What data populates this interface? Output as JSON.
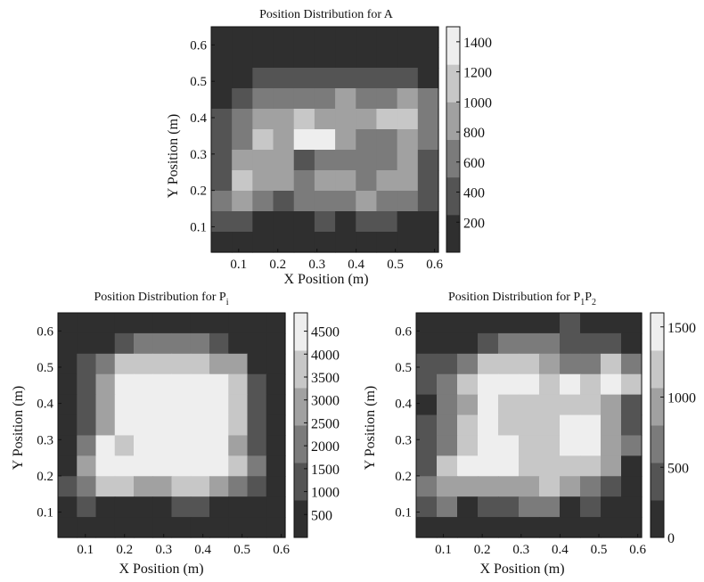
{
  "colors": {
    "levels": [
      "#2f2f2f",
      "#545454",
      "#7b7b7b",
      "#a1a1a1",
      "#c7c7c7",
      "#eeeeee"
    ],
    "frame": "#111111",
    "background": "#ffffff"
  },
  "chart_data": [
    {
      "type": "heatmap",
      "title": "Position Distribution for A",
      "xlabel": "X Position (m)",
      "ylabel": "Y Position (m)",
      "xticks": [
        "0.1",
        "0.2",
        "0.3",
        "0.4",
        "0.5",
        "0.6"
      ],
      "yticks": [
        "0.1",
        "0.2",
        "0.3",
        "0.4",
        "0.5",
        "0.6"
      ],
      "xlim": [
        0.03,
        0.61
      ],
      "ylim": [
        0.03,
        0.65
      ],
      "grid": false,
      "colorbar": {
        "ticks": [
          "200",
          "400",
          "600",
          "800",
          "1000",
          "1200",
          "1400"
        ],
        "tick_values": [
          200,
          400,
          600,
          800,
          1000,
          1200,
          1400
        ],
        "range": [
          0,
          1500
        ],
        "levels": 6
      },
      "cell_levels": [
        [
          0,
          0,
          0,
          0,
          0,
          0,
          0,
          0,
          0,
          0,
          0
        ],
        [
          0,
          0,
          0,
          0,
          0,
          0,
          0,
          0,
          0,
          0,
          0
        ],
        [
          0,
          0,
          1,
          1,
          1,
          1,
          1,
          1,
          1,
          1,
          0
        ],
        [
          0,
          1,
          2,
          2,
          2,
          2,
          3,
          2,
          2,
          3,
          2
        ],
        [
          1,
          2,
          3,
          3,
          4,
          3,
          3,
          3,
          4,
          4,
          2
        ],
        [
          1,
          2,
          4,
          3,
          5,
          5,
          3,
          2,
          2,
          3,
          2
        ],
        [
          1,
          3,
          3,
          3,
          1,
          2,
          2,
          2,
          2,
          3,
          1
        ],
        [
          1,
          4,
          3,
          3,
          2,
          3,
          3,
          2,
          3,
          3,
          1
        ],
        [
          2,
          3,
          2,
          1,
          2,
          2,
          2,
          3,
          2,
          2,
          1
        ],
        [
          1,
          1,
          0,
          0,
          0,
          1,
          0,
          1,
          1,
          0,
          0
        ],
        [
          0,
          0,
          0,
          0,
          0,
          0,
          0,
          0,
          0,
          0,
          0
        ]
      ]
    },
    {
      "type": "heatmap",
      "title": "Position Distribution for P",
      "title_subscript": "i",
      "xlabel": "X Position (m)",
      "ylabel": "Y Position (m)",
      "xticks": [
        "0.1",
        "0.2",
        "0.3",
        "0.4",
        "0.5",
        "0.6"
      ],
      "yticks": [
        "0.1",
        "0.2",
        "0.3",
        "0.4",
        "0.5",
        "0.6"
      ],
      "xlim": [
        0.03,
        0.61
      ],
      "ylim": [
        0.03,
        0.65
      ],
      "grid": false,
      "colorbar": {
        "ticks": [
          "500",
          "1000",
          "1500",
          "2000",
          "2500",
          "3000",
          "3500",
          "4000",
          "4500"
        ],
        "tick_values": [
          500,
          1000,
          1500,
          2000,
          2500,
          3000,
          3500,
          4000,
          4500
        ],
        "range": [
          0,
          4900
        ],
        "levels": 6
      },
      "cell_levels": [
        [
          0,
          0,
          0,
          0,
          0,
          0,
          0,
          0,
          0,
          0,
          0,
          0
        ],
        [
          0,
          0,
          0,
          1,
          2,
          2,
          2,
          2,
          1,
          0,
          0,
          0
        ],
        [
          0,
          1,
          2,
          4,
          4,
          4,
          4,
          4,
          3,
          3,
          0,
          0
        ],
        [
          0,
          1,
          3,
          5,
          5,
          5,
          5,
          5,
          5,
          4,
          1,
          0
        ],
        [
          0,
          1,
          3,
          5,
          5,
          5,
          5,
          5,
          5,
          4,
          1,
          0
        ],
        [
          0,
          1,
          3,
          5,
          5,
          5,
          5,
          5,
          5,
          4,
          1,
          0
        ],
        [
          0,
          2,
          5,
          4,
          5,
          5,
          5,
          5,
          5,
          3,
          1,
          0
        ],
        [
          0,
          3,
          5,
          5,
          5,
          5,
          5,
          5,
          5,
          4,
          2,
          0
        ],
        [
          1,
          2,
          4,
          4,
          3,
          3,
          4,
          4,
          3,
          2,
          1,
          0
        ],
        [
          0,
          1,
          0,
          0,
          0,
          0,
          1,
          1,
          0,
          0,
          0,
          0
        ],
        [
          0,
          0,
          0,
          0,
          0,
          0,
          0,
          0,
          0,
          0,
          0,
          0
        ]
      ]
    },
    {
      "type": "heatmap",
      "title": "Position Distribution for P",
      "title_sub1": "1",
      "title_mid": "P",
      "title_sub2": "2",
      "xlabel": "X Position (m)",
      "ylabel": "Y Position (m)",
      "xticks": [
        "0.1",
        "0.2",
        "0.3",
        "0.4",
        "0.5",
        "0.6"
      ],
      "yticks": [
        "0.1",
        "0.2",
        "0.3",
        "0.4",
        "0.5",
        "0.6"
      ],
      "xlim": [
        0.03,
        0.61
      ],
      "ylim": [
        0.03,
        0.65
      ],
      "grid": false,
      "colorbar": {
        "ticks": [
          "0",
          "500",
          "1000",
          "1500"
        ],
        "tick_values": [
          0,
          500,
          1000,
          1500
        ],
        "range": [
          0,
          1600
        ],
        "levels": 6
      },
      "cell_levels": [
        [
          0,
          0,
          0,
          0,
          0,
          0,
          0,
          1,
          0,
          0,
          0
        ],
        [
          0,
          0,
          0,
          1,
          2,
          2,
          2,
          1,
          1,
          1,
          0
        ],
        [
          1,
          1,
          2,
          4,
          4,
          4,
          3,
          2,
          2,
          4,
          2
        ],
        [
          1,
          2,
          4,
          5,
          5,
          5,
          4,
          5,
          4,
          5,
          4
        ],
        [
          0,
          2,
          3,
          5,
          4,
          4,
          4,
          4,
          4,
          3,
          1
        ],
        [
          1,
          2,
          4,
          5,
          4,
          4,
          4,
          5,
          5,
          3,
          1
        ],
        [
          1,
          2,
          4,
          5,
          5,
          4,
          4,
          5,
          5,
          3,
          2
        ],
        [
          1,
          4,
          5,
          5,
          5,
          4,
          4,
          4,
          4,
          3,
          0
        ],
        [
          2,
          3,
          3,
          3,
          3,
          3,
          4,
          3,
          2,
          1,
          0
        ],
        [
          1,
          2,
          0,
          1,
          1,
          2,
          2,
          0,
          1,
          0,
          0
        ],
        [
          0,
          0,
          0,
          0,
          0,
          0,
          0,
          0,
          0,
          0,
          0
        ]
      ]
    }
  ]
}
